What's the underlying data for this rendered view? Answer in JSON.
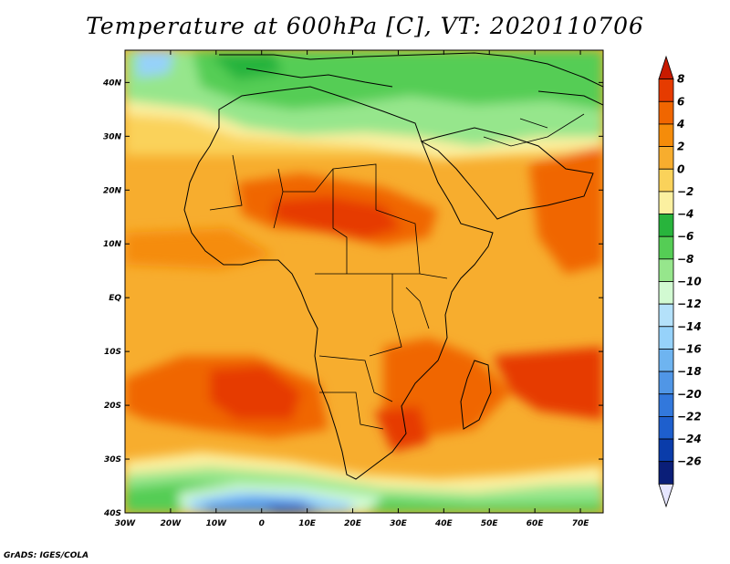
{
  "title": "Temperature at 600hPa [C], VT: 2020110706",
  "credit": "GrADS: IGES/COLA",
  "map": {
    "lon_range": [
      -30,
      75
    ],
    "lat_range": [
      -40,
      46
    ],
    "lon_ticks": [
      {
        "value": -30,
        "label": "30W"
      },
      {
        "value": -20,
        "label": "20W"
      },
      {
        "value": -10,
        "label": "10W"
      },
      {
        "value": 0,
        "label": "0"
      },
      {
        "value": 10,
        "label": "10E"
      },
      {
        "value": 20,
        "label": "20E"
      },
      {
        "value": 30,
        "label": "30E"
      },
      {
        "value": 40,
        "label": "40E"
      },
      {
        "value": 50,
        "label": "50E"
      },
      {
        "value": 60,
        "label": "60E"
      },
      {
        "value": 70,
        "label": "70E"
      }
    ],
    "lat_ticks": [
      {
        "value": 40,
        "label": "40N"
      },
      {
        "value": 30,
        "label": "30N"
      },
      {
        "value": 20,
        "label": "20N"
      },
      {
        "value": 10,
        "label": "10N"
      },
      {
        "value": 0,
        "label": "EQ"
      },
      {
        "value": -10,
        "label": "10S"
      },
      {
        "value": -20,
        "label": "20S"
      },
      {
        "value": -30,
        "label": "30S"
      },
      {
        "value": -40,
        "label": "40S"
      }
    ]
  },
  "colorbar": {
    "levels": [
      8,
      6,
      4,
      2,
      0,
      -2,
      -4,
      -6,
      -8,
      -10,
      -12,
      -14,
      -16,
      -18,
      -20,
      -22,
      -24,
      -26
    ],
    "labels": [
      "8",
      "6",
      "4",
      "2",
      "0",
      "−2",
      "−4",
      "−6",
      "−8",
      "−10",
      "−12",
      "−14",
      "−16",
      "−18",
      "−20",
      "−22",
      "−24",
      "−26"
    ],
    "colors": [
      "#c81a00",
      "#e63b00",
      "#f06600",
      "#f58c0a",
      "#f7ad2e",
      "#fad25a",
      "#fbf0a0",
      "#28b43c",
      "#55cd55",
      "#96e68c",
      "#d2fad2",
      "#b4e1fa",
      "#96d2fa",
      "#6eb4f0",
      "#5096e6",
      "#3278dc",
      "#1e5fcd",
      "#0a3caa",
      "#0a1e78",
      "#e6e6ff"
    ]
  },
  "colors": {
    "ocean_base": "#f7ad2e",
    "land_border": "#000000"
  }
}
